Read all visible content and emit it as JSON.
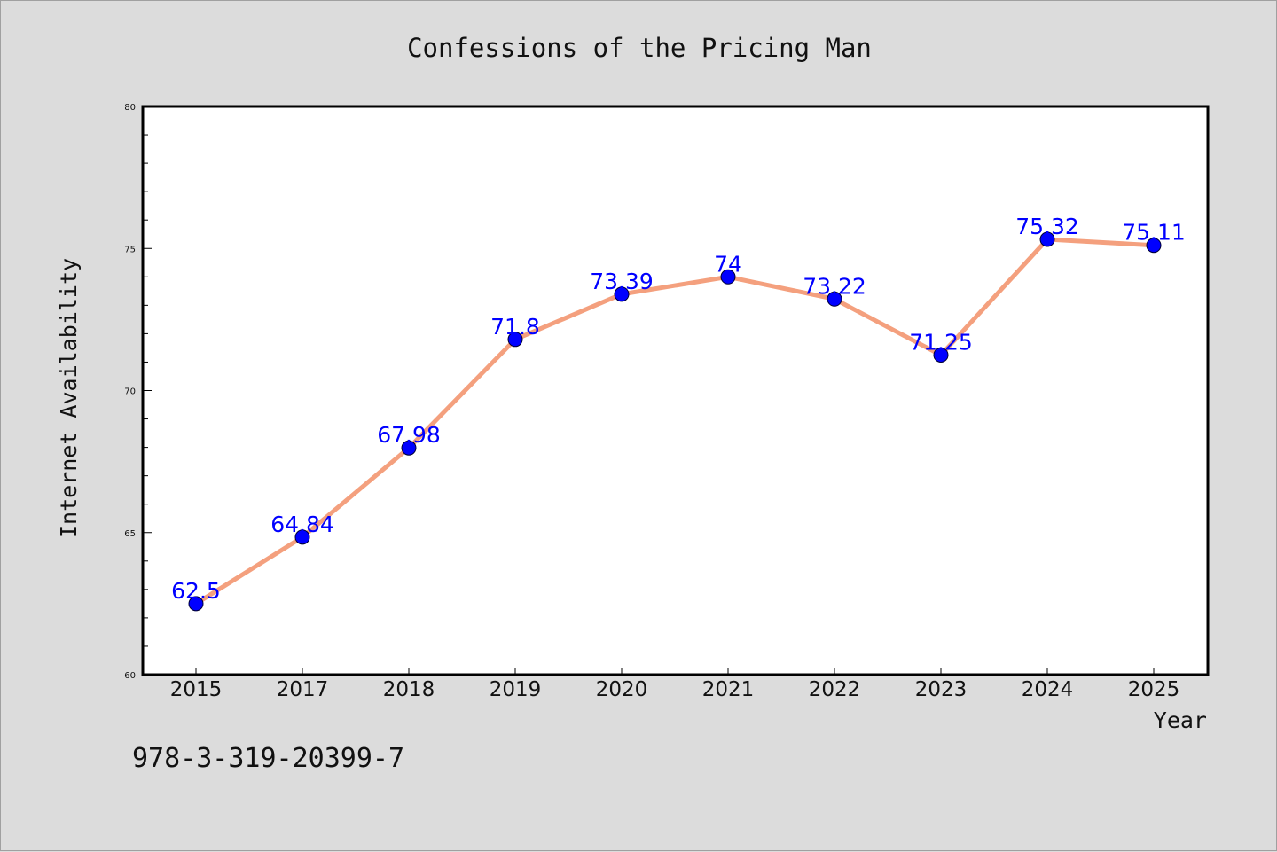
{
  "chart_data": {
    "type": "line",
    "title": "Confessions of the Pricing Man",
    "xlabel": "Year",
    "ylabel": "Internet Availability",
    "categories": [
      "2015",
      "2017",
      "2018",
      "2019",
      "2020",
      "2021",
      "2022",
      "2023",
      "2024",
      "2025"
    ],
    "values": [
      62.5,
      64.84,
      67.98,
      71.8,
      73.39,
      74,
      73.22,
      71.25,
      75.32,
      75.11
    ],
    "data_labels": [
      "62.5",
      "64.84",
      "67.98",
      "71.8",
      "73.39",
      "74",
      "73.22",
      "71.25",
      "75.32",
      "75.11"
    ],
    "ylim": [
      60,
      80
    ],
    "yticks": [
      "60",
      "65",
      "70",
      "75",
      "80"
    ],
    "grid": false,
    "line_color": "#f4a07e",
    "marker_color": "#0000ff"
  },
  "footer": {
    "isbn": "978-3-319-20399-7"
  }
}
